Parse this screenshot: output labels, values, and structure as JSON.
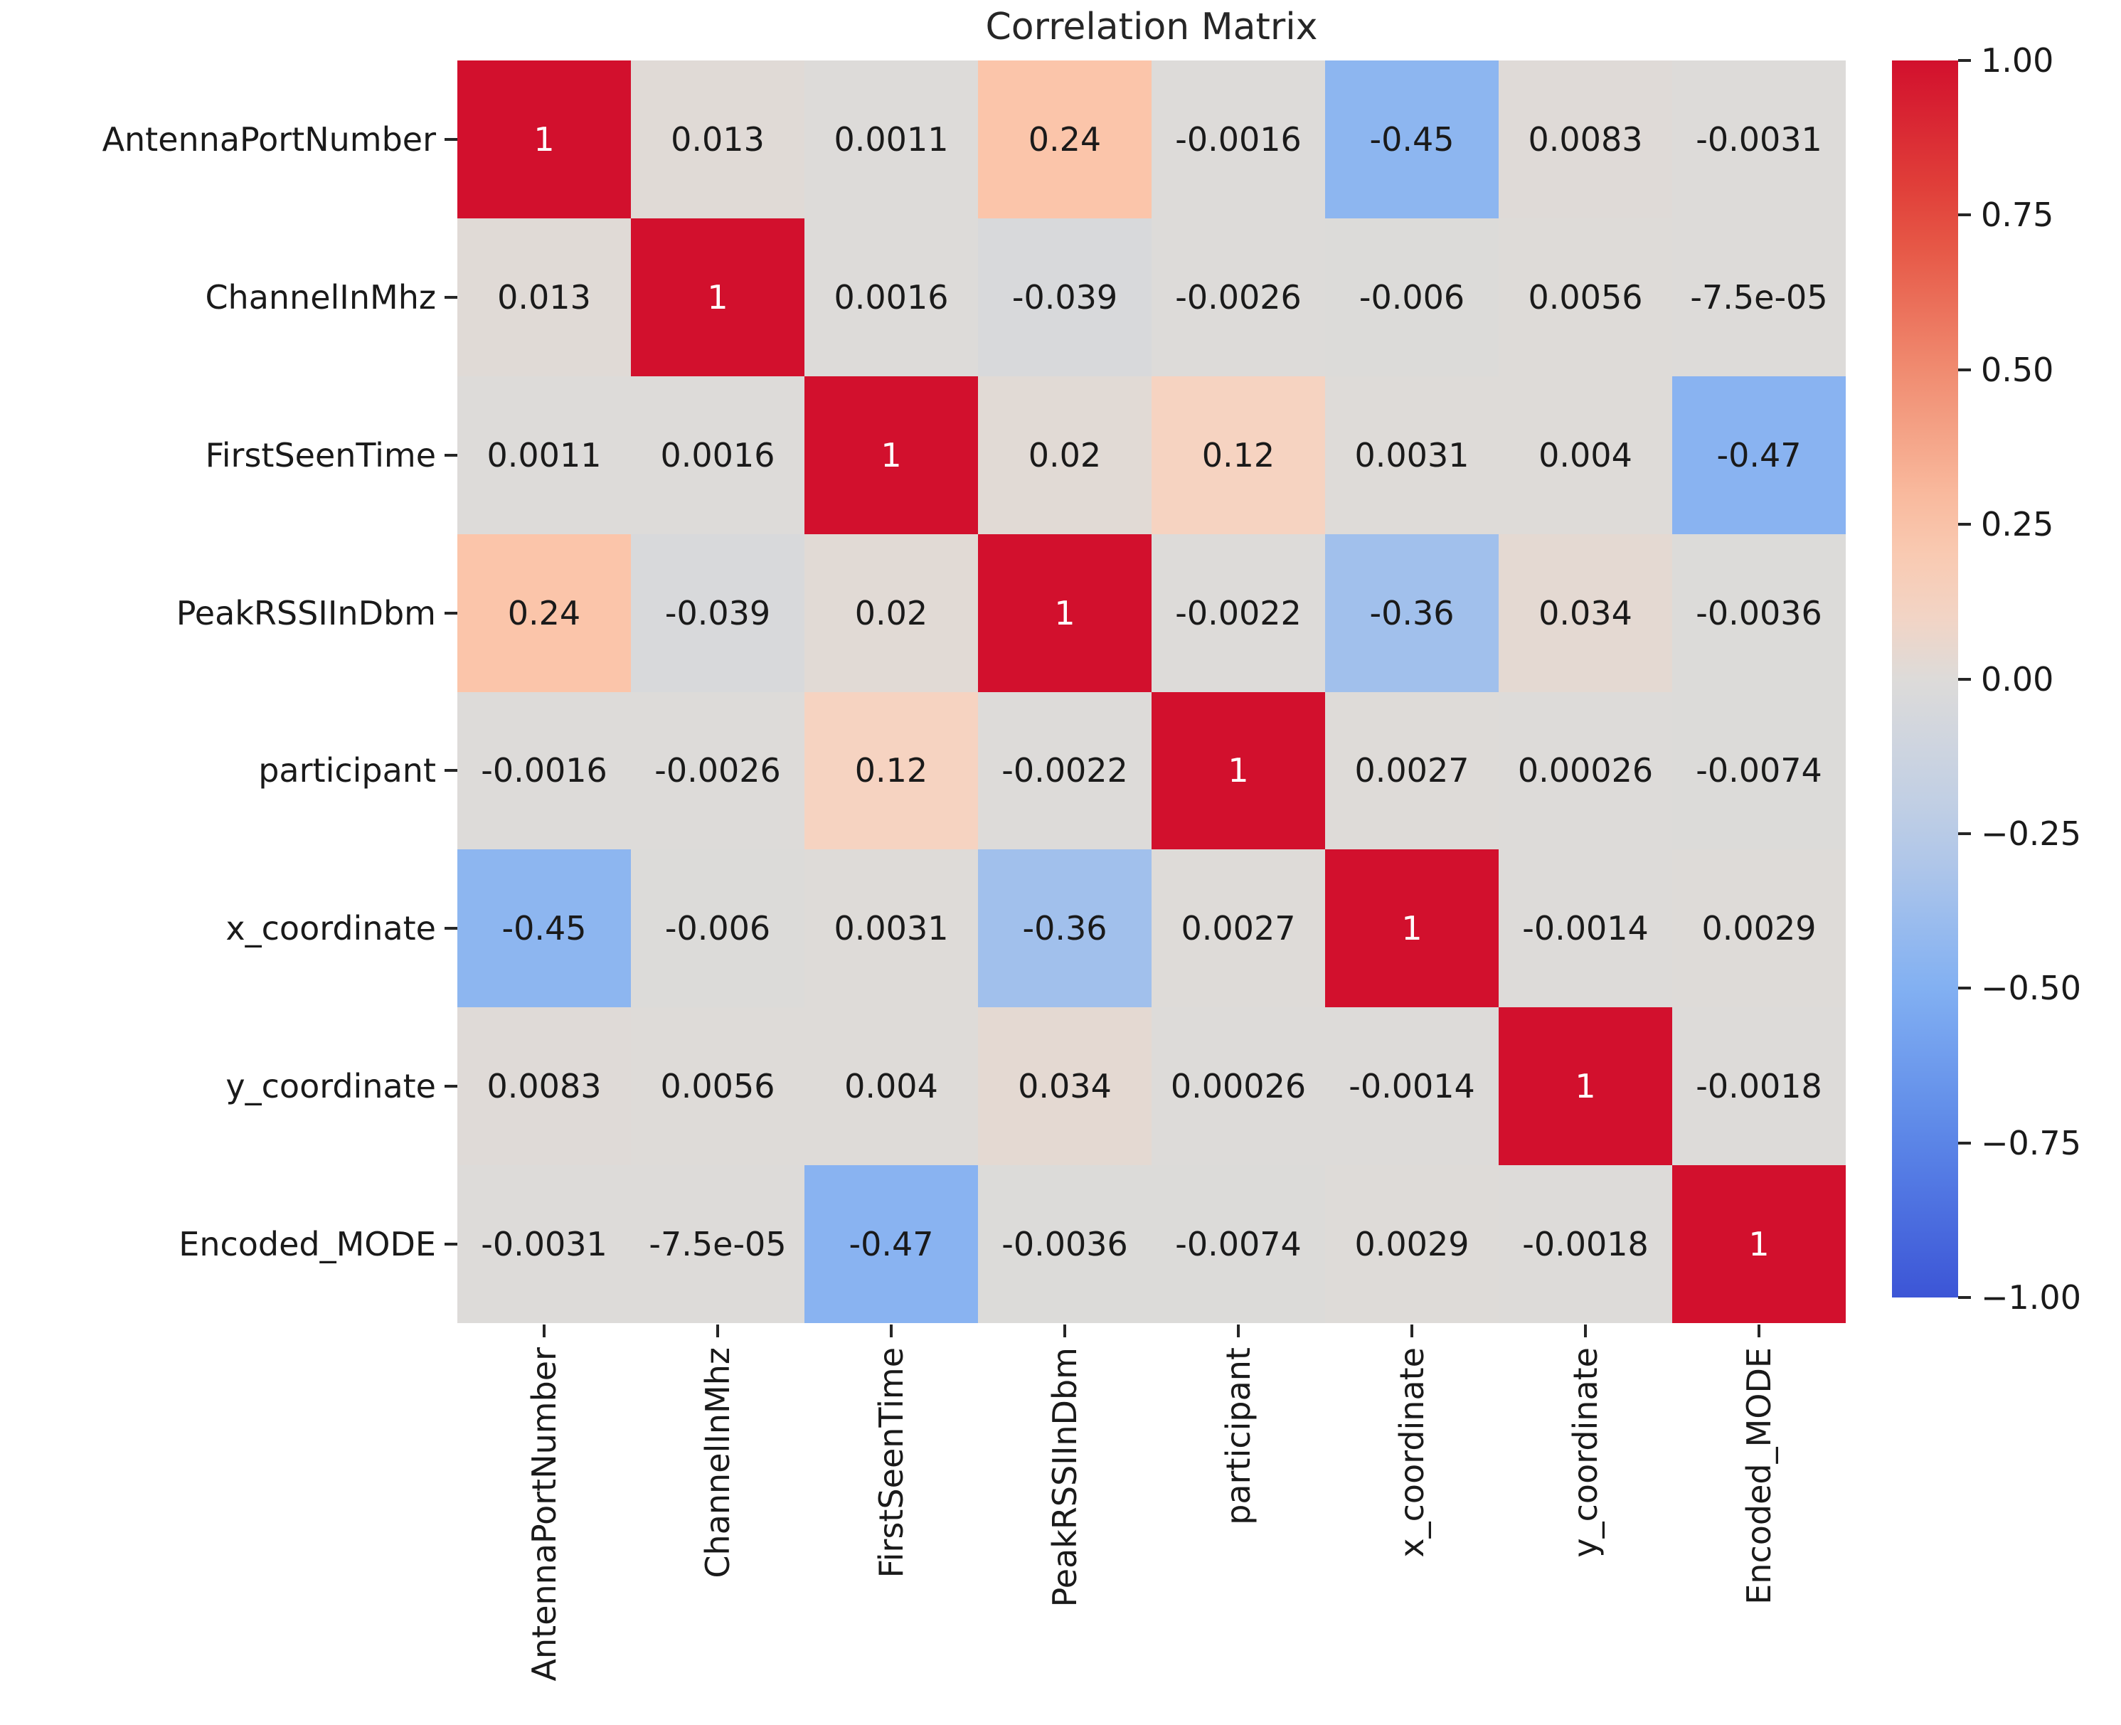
{
  "title": "Correlation Matrix",
  "chart_data": {
    "type": "heatmap",
    "title": "Correlation Matrix",
    "categories": [
      "AntennaPortNumber",
      "ChannelInMhz",
      "FirstSeenTime",
      "PeakRSSIInDbm",
      "participant",
      "x_coordinate",
      "y_coordinate",
      "Encoded_MODE"
    ],
    "values": [
      [
        1,
        0.013,
        0.0011,
        0.24,
        -0.0016,
        -0.45,
        0.0083,
        -0.0031
      ],
      [
        0.013,
        1,
        0.0016,
        -0.039,
        -0.0026,
        -0.006,
        0.0056,
        -7.5e-05
      ],
      [
        0.0011,
        0.0016,
        1,
        0.02,
        0.12,
        0.0031,
        0.004,
        -0.47
      ],
      [
        0.24,
        -0.039,
        0.02,
        1,
        -0.0022,
        -0.36,
        0.034,
        -0.0036
      ],
      [
        -0.0016,
        -0.0026,
        0.12,
        -0.0022,
        1,
        0.0027,
        0.00026,
        -0.0074
      ],
      [
        -0.45,
        -0.006,
        0.0031,
        -0.36,
        0.0027,
        1,
        -0.0014,
        0.0029
      ],
      [
        0.0083,
        0.0056,
        0.004,
        0.034,
        0.00026,
        -0.0014,
        1,
        -0.0018
      ],
      [
        -0.0031,
        -7.5e-05,
        -0.47,
        -0.0036,
        -0.0074,
        0.0029,
        -0.0018,
        1
      ]
    ],
    "cell_labels": [
      [
        "1",
        "0.013",
        "0.0011",
        "0.24",
        "-0.0016",
        "-0.45",
        "0.0083",
        "-0.0031"
      ],
      [
        "0.013",
        "1",
        "0.0016",
        "-0.039",
        "-0.0026",
        "-0.006",
        "0.0056",
        "-7.5e-05"
      ],
      [
        "0.0011",
        "0.0016",
        "1",
        "0.02",
        "0.12",
        "0.0031",
        "0.004",
        "-0.47"
      ],
      [
        "0.24",
        "-0.039",
        "0.02",
        "1",
        "-0.0022",
        "-0.36",
        "0.034",
        "-0.0036"
      ],
      [
        "-0.0016",
        "-0.0026",
        "0.12",
        "-0.0022",
        "1",
        "0.0027",
        "0.00026",
        "-0.0074"
      ],
      [
        "-0.45",
        "-0.006",
        "0.0031",
        "-0.36",
        "0.0027",
        "1",
        "-0.0014",
        "0.0029"
      ],
      [
        "0.0083",
        "0.0056",
        "0.004",
        "0.034",
        "0.00026",
        "-0.0014",
        "1",
        "-0.0018"
      ],
      [
        "-0.0031",
        "-7.5e-05",
        "-0.47",
        "-0.0036",
        "-0.0074",
        "0.0029",
        "-0.0018",
        "1"
      ]
    ],
    "colorbar": {
      "min": -1,
      "max": 1,
      "tick_labels": [
        "1.00",
        "0.75",
        "0.50",
        "0.25",
        "0.00",
        "−0.25",
        "−0.50",
        "−0.75",
        "−1.00"
      ],
      "colormap_anchors": [
        {
          "value": -1.0,
          "color": "#3c55d6"
        },
        {
          "value": -0.75,
          "color": "#5a85e7"
        },
        {
          "value": -0.5,
          "color": "#82b0f2"
        },
        {
          "value": -0.25,
          "color": "#bacce7"
        },
        {
          "value": 0.0,
          "color": "#dddbd9"
        },
        {
          "value": 0.12,
          "color": "#f6d3c1"
        },
        {
          "value": 0.25,
          "color": "#fbc4a8"
        },
        {
          "value": 0.5,
          "color": "#f08b70"
        },
        {
          "value": 0.75,
          "color": "#e34a3c"
        },
        {
          "value": 1.0,
          "color": "#d2102d"
        }
      ]
    },
    "annotation_text_color": "#1a1a1a",
    "diagonal_text_color": "#ffffff",
    "layout_hints": {
      "x_tick_rotation_deg": 90,
      "legend_position": "right-colorbar",
      "grid": "off"
    }
  }
}
